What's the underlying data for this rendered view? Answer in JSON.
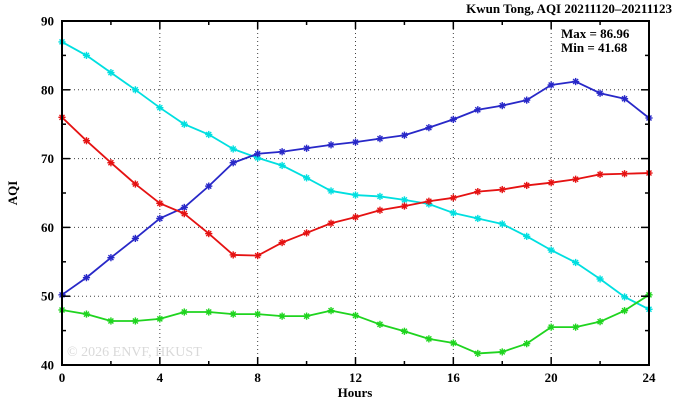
{
  "title": "Kwun Tong, AQI 20211120–20211123",
  "annotations": {
    "max_label": "Max = 86.96",
    "min_label": "Min = 41.68"
  },
  "watermark": "© 2026 ENVF, HKUST",
  "chart_data": {
    "type": "line",
    "title": "Kwun Tong, AQI 20211120–20211123",
    "xlabel": "Hours",
    "ylabel": "AQI",
    "xlim": [
      0,
      24
    ],
    "ylim": [
      40,
      90
    ],
    "x_major_ticks": [
      0,
      4,
      8,
      12,
      16,
      20,
      24
    ],
    "x_minor_step": 2,
    "y_major_ticks": [
      40,
      50,
      60,
      70,
      80,
      90
    ],
    "y_minor_step": 5,
    "grid": "dotted lines at interior major ticks, mirrored inward ticks on all four borders",
    "legend": "none",
    "marker_style": "asterisk",
    "x": [
      0,
      1,
      2,
      3,
      4,
      5,
      6,
      7,
      8,
      9,
      10,
      11,
      12,
      13,
      14,
      15,
      16,
      17,
      18,
      19,
      20,
      21,
      22,
      23,
      24
    ],
    "series": [
      {
        "name": "cyan-series",
        "color": "#00dfe0",
        "values": [
          86.96,
          85.0,
          82.5,
          80.0,
          77.4,
          75.0,
          73.5,
          71.4,
          70.1,
          69.0,
          67.2,
          65.3,
          64.7,
          64.5,
          64.0,
          63.4,
          62.1,
          61.3,
          60.5,
          58.7,
          56.7,
          54.9,
          52.5,
          49.9,
          48.1
        ]
      },
      {
        "name": "blue-series",
        "color": "#2828c8",
        "values": [
          50.2,
          52.7,
          55.6,
          58.4,
          61.3,
          62.9,
          66.0,
          69.4,
          70.7,
          71.0,
          71.5,
          72.0,
          72.4,
          72.9,
          73.4,
          74.5,
          75.7,
          77.1,
          77.7,
          78.5,
          80.7,
          81.2,
          79.5,
          78.7,
          75.9
        ]
      },
      {
        "name": "red-series",
        "color": "#e51212",
        "values": [
          76.0,
          72.6,
          69.4,
          66.3,
          63.5,
          62.0,
          59.1,
          56.0,
          55.9,
          57.8,
          59.2,
          60.6,
          61.5,
          62.5,
          63.1,
          63.8,
          64.3,
          65.2,
          65.5,
          66.1,
          66.5,
          67.0,
          67.7,
          67.8,
          67.9
        ]
      },
      {
        "name": "green-series",
        "color": "#1fd41f",
        "values": [
          48.0,
          47.4,
          46.4,
          46.4,
          46.7,
          47.7,
          47.7,
          47.4,
          47.4,
          47.1,
          47.1,
          47.9,
          47.2,
          45.9,
          44.9,
          43.8,
          43.2,
          41.68,
          41.9,
          43.1,
          45.5,
          45.5,
          46.3,
          47.9,
          50.2
        ]
      }
    ],
    "stats": {
      "max": 86.96,
      "min": 41.68
    }
  }
}
